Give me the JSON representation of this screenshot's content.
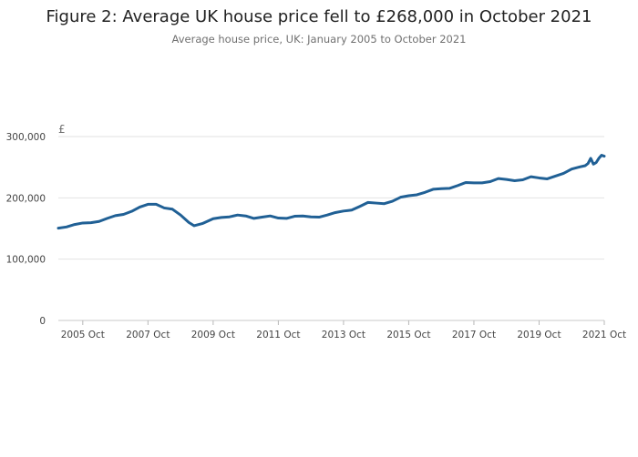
{
  "chart_data": {
    "type": "line",
    "title": "Figure 2: Average UK house price fell to £268,000 in October 2021",
    "subtitle": "Average house price, UK: January 2005 to October 2021",
    "ylabel": "£",
    "xlabel": "",
    "ylim": [
      0,
      300000
    ],
    "yticks": [
      0,
      100000,
      200000,
      300000
    ],
    "ytick_labels": [
      "0",
      "100,000",
      "200,000",
      "300,000"
    ],
    "xlim": [
      "2005-01",
      "2021-10"
    ],
    "xticks": [
      "2005-10",
      "2007-10",
      "2009-10",
      "2011-10",
      "2013-10",
      "2015-10",
      "2017-10",
      "2019-10",
      "2021-10"
    ],
    "xtick_labels": [
      "2005 Oct",
      "2007 Oct",
      "2009 Oct",
      "2011 Oct",
      "2013 Oct",
      "2015 Oct",
      "2017 Oct",
      "2019 Oct",
      "2021 Oct"
    ],
    "grid": true,
    "legend": "none",
    "line_color": "#206095",
    "series": [
      {
        "name": "",
        "points": [
          [
            "2005-01",
            150500
          ],
          [
            "2005-04",
            152500
          ],
          [
            "2005-07",
            156500
          ],
          [
            "2005-10",
            159000
          ],
          [
            "2006-01",
            159500
          ],
          [
            "2006-04",
            161500
          ],
          [
            "2006-07",
            166500
          ],
          [
            "2006-10",
            171000
          ],
          [
            "2007-01",
            173000
          ],
          [
            "2007-04",
            178000
          ],
          [
            "2007-07",
            185000
          ],
          [
            "2007-10",
            189500
          ],
          [
            "2008-01",
            189500
          ],
          [
            "2008-04",
            183500
          ],
          [
            "2008-07",
            181500
          ],
          [
            "2008-10",
            172000
          ],
          [
            "2009-01",
            160000
          ],
          [
            "2009-03",
            154500
          ],
          [
            "2009-06",
            158000
          ],
          [
            "2009-10",
            166000
          ],
          [
            "2010-01",
            168000
          ],
          [
            "2010-04",
            169000
          ],
          [
            "2010-07",
            172000
          ],
          [
            "2010-10",
            170500
          ],
          [
            "2011-01",
            166500
          ],
          [
            "2011-04",
            168500
          ],
          [
            "2011-07",
            170500
          ],
          [
            "2011-10",
            167000
          ],
          [
            "2012-01",
            166500
          ],
          [
            "2012-04",
            170000
          ],
          [
            "2012-07",
            170500
          ],
          [
            "2012-10",
            169000
          ],
          [
            "2013-01",
            168500
          ],
          [
            "2013-04",
            172000
          ],
          [
            "2013-07",
            176000
          ],
          [
            "2013-10",
            178500
          ],
          [
            "2014-01",
            180000
          ],
          [
            "2014-04",
            186000
          ],
          [
            "2014-07",
            192500
          ],
          [
            "2014-10",
            191500
          ],
          [
            "2015-01",
            190500
          ],
          [
            "2015-04",
            194500
          ],
          [
            "2015-07",
            201000
          ],
          [
            "2015-10",
            203500
          ],
          [
            "2016-01",
            205000
          ],
          [
            "2016-04",
            209000
          ],
          [
            "2016-07",
            214000
          ],
          [
            "2016-10",
            215000
          ],
          [
            "2017-01",
            215500
          ],
          [
            "2017-04",
            220000
          ],
          [
            "2017-07",
            225000
          ],
          [
            "2017-10",
            224500
          ],
          [
            "2018-01",
            224500
          ],
          [
            "2018-04",
            226500
          ],
          [
            "2018-07",
            231500
          ],
          [
            "2018-10",
            230000
          ],
          [
            "2019-01",
            228000
          ],
          [
            "2019-04",
            229500
          ],
          [
            "2019-07",
            234500
          ],
          [
            "2019-10",
            232500
          ],
          [
            "2020-01",
            231000
          ],
          [
            "2020-04",
            235500
          ],
          [
            "2020-07",
            240000
          ],
          [
            "2020-10",
            247000
          ],
          [
            "2021-01",
            250500
          ],
          [
            "2021-03",
            252500
          ],
          [
            "2021-04",
            256000
          ],
          [
            "2021-05",
            264500
          ],
          [
            "2021-06",
            255000
          ],
          [
            "2021-07",
            257500
          ],
          [
            "2021-08",
            264500
          ],
          [
            "2021-09",
            269500
          ],
          [
            "2021-10",
            268000
          ]
        ]
      }
    ]
  }
}
